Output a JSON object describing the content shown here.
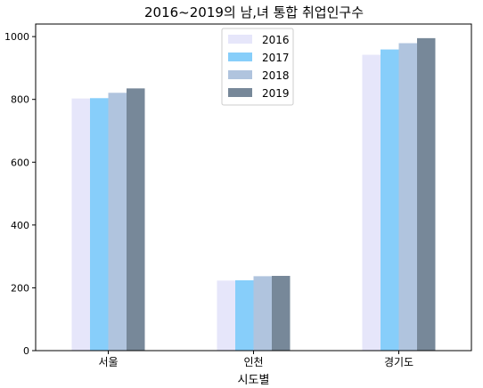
{
  "chart_data": {
    "type": "bar",
    "title": "2016~2019의 남,녀 통합 취업인구수",
    "xlabel": "시도별",
    "ylabel": "",
    "categories": [
      "서울",
      "인천",
      "경기도"
    ],
    "series": [
      {
        "name": "2016",
        "values": [
          803,
          223,
          942
        ],
        "color": "#e6e6fa"
      },
      {
        "name": "2017",
        "values": [
          804,
          224,
          959
        ],
        "color": "#87cefa"
      },
      {
        "name": "2018",
        "values": [
          821,
          237,
          979
        ],
        "color": "#b0c4de"
      },
      {
        "name": "2019",
        "values": [
          835,
          238,
          995
        ],
        "color": "#778899"
      }
    ],
    "ylim": [
      0,
      1040
    ],
    "yticks": [
      0,
      200,
      400,
      600,
      800,
      1000
    ],
    "grid": false,
    "legend_position": "top-center"
  }
}
